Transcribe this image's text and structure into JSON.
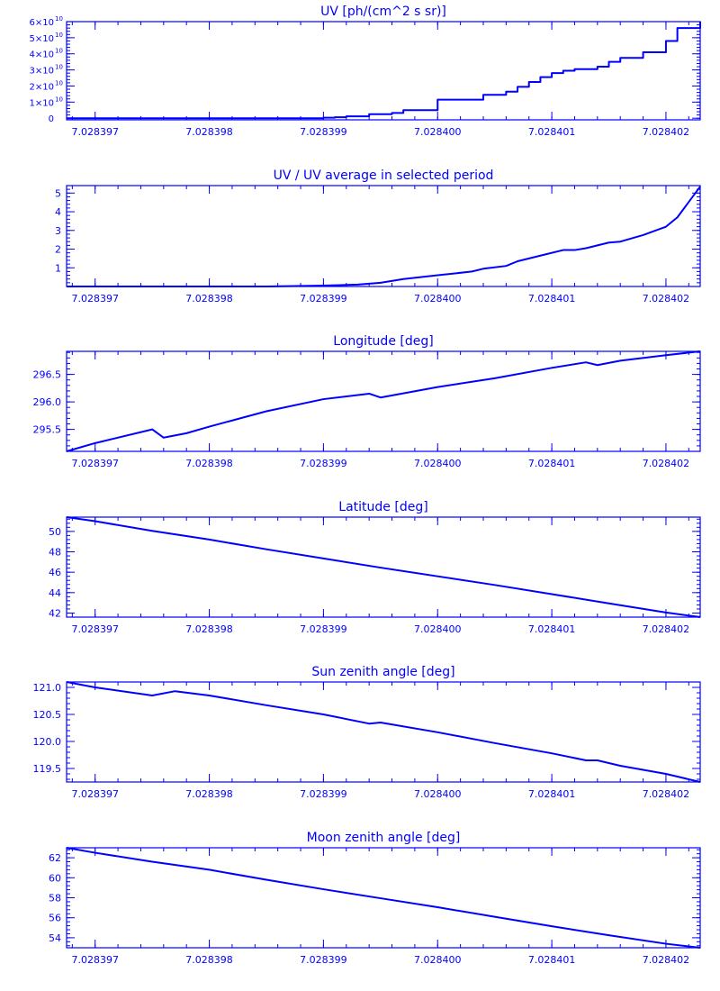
{
  "colors": {
    "axis": "#0000ff",
    "line": "#0000ff",
    "background": "#ffffff"
  },
  "chart_data": [
    {
      "type": "line",
      "id": "uv",
      "title": "UV [ph/(cm^2 s sr)]",
      "xlabel": "",
      "ylabel": "",
      "step": true,
      "xlim": [
        7.02839675,
        7.0284023
      ],
      "ylim": [
        -1000000000,
        60000000000
      ],
      "xticks": [
        "7.028397",
        "7.028398",
        "7.028399",
        "7.028400",
        "7.028401",
        "7.028402"
      ],
      "xtick_values": [
        7.028397,
        7.028398,
        7.028399,
        7.0284,
        7.028401,
        7.028402
      ],
      "yticks": [
        {
          "value": 0,
          "mant": "0",
          "exp": ""
        },
        {
          "value": 10000000000,
          "mant": "1×10",
          "exp": "10"
        },
        {
          "value": 20000000000,
          "mant": "2×10",
          "exp": "10"
        },
        {
          "value": 30000000000,
          "mant": "3×10",
          "exp": "10"
        },
        {
          "value": 40000000000,
          "mant": "4×10",
          "exp": "10"
        },
        {
          "value": 50000000000,
          "mant": "5×10",
          "exp": "10"
        },
        {
          "value": 60000000000,
          "mant": "6×10",
          "exp": "10"
        }
      ],
      "x": [
        7.02839675,
        7.0283985,
        7.0283988,
        7.028399,
        7.0283991,
        7.0283992,
        7.0283994,
        7.0283996,
        7.0283997,
        7.0284,
        7.0284003,
        7.0284004,
        7.0284006,
        7.0284007,
        7.0284008,
        7.0284009,
        7.028401,
        7.0284011,
        7.0284012,
        7.0284014,
        7.0284015,
        7.0284016,
        7.0284018,
        7.028402,
        7.0284021,
        7.0284023
      ],
      "values": [
        0,
        0,
        0,
        300000000,
        600000000,
        1200000000,
        2500000000,
        3300000000,
        5000000000,
        11500000000,
        11500000000,
        14500000000,
        16500000000,
        19500000000,
        22500000000,
        25500000000,
        28000000000,
        29500000000,
        30500000000,
        32000000000,
        35000000000,
        37500000000,
        41000000000,
        48000000000,
        56000000000,
        60000000000
      ]
    },
    {
      "type": "line",
      "id": "uv-ratio",
      "title": "UV / UV average in selected period",
      "xlabel": "",
      "ylabel": "",
      "xlim": [
        7.02839675,
        7.0284023
      ],
      "ylim": [
        0,
        5.4
      ],
      "xticks": [
        "7.028397",
        "7.028398",
        "7.028399",
        "7.028400",
        "7.028401",
        "7.028402"
      ],
      "xtick_values": [
        7.028397,
        7.028398,
        7.028399,
        7.0284,
        7.028401,
        7.028402
      ],
      "yticks": [
        {
          "value": 1,
          "label": "1"
        },
        {
          "value": 2,
          "label": "2"
        },
        {
          "value": 3,
          "label": "3"
        },
        {
          "value": 4,
          "label": "4"
        },
        {
          "value": 5,
          "label": "5"
        }
      ],
      "x": [
        7.02839675,
        7.0283985,
        7.028399,
        7.0283993,
        7.0283995,
        7.0283997,
        7.0284,
        7.0284003,
        7.0284004,
        7.0284006,
        7.0284007,
        7.0284009,
        7.0284011,
        7.0284012,
        7.0284013,
        7.0284015,
        7.0284016,
        7.0284018,
        7.028402,
        7.0284021,
        7.0284023
      ],
      "values": [
        0,
        0,
        0.05,
        0.1,
        0.2,
        0.4,
        0.6,
        0.8,
        0.95,
        1.1,
        1.35,
        1.65,
        1.95,
        1.95,
        2.05,
        2.35,
        2.4,
        2.75,
        3.2,
        3.7,
        5.35
      ]
    },
    {
      "type": "line",
      "id": "longitude",
      "title": "Longitude [deg]",
      "xlabel": "",
      "ylabel": "",
      "xlim": [
        7.02839675,
        7.0284023
      ],
      "ylim": [
        295.1,
        296.92
      ],
      "xticks": [
        "7.028397",
        "7.028398",
        "7.028399",
        "7.028400",
        "7.028401",
        "7.028402"
      ],
      "xtick_values": [
        7.028397,
        7.028398,
        7.028399,
        7.0284,
        7.028401,
        7.028402
      ],
      "yticks": [
        {
          "value": 295.5,
          "label": "295.5"
        },
        {
          "value": 296.0,
          "label": "296.0"
        },
        {
          "value": 296.5,
          "label": "296.5"
        }
      ],
      "x": [
        7.02839675,
        7.028397,
        7.0283975,
        7.0283976,
        7.0283978,
        7.028398,
        7.0283985,
        7.028399,
        7.0283994,
        7.0283995,
        7.0284,
        7.0284005,
        7.028401,
        7.0284013,
        7.0284014,
        7.0284016,
        7.028402,
        7.0284023
      ],
      "values": [
        295.1,
        295.25,
        295.5,
        295.35,
        295.43,
        295.55,
        295.83,
        296.05,
        296.15,
        296.08,
        296.27,
        296.43,
        296.62,
        296.72,
        296.67,
        296.75,
        296.85,
        296.92
      ]
    },
    {
      "type": "line",
      "id": "latitude",
      "title": "Latitude [deg]",
      "xlabel": "",
      "ylabel": "",
      "xlim": [
        7.02839675,
        7.0284023
      ],
      "ylim": [
        41.6,
        51.4
      ],
      "xticks": [
        "7.028397",
        "7.028398",
        "7.028399",
        "7.028400",
        "7.028401",
        "7.028402"
      ],
      "xtick_values": [
        7.028397,
        7.028398,
        7.028399,
        7.0284,
        7.028401,
        7.028402
      ],
      "yticks": [
        {
          "value": 42,
          "label": "42"
        },
        {
          "value": 44,
          "label": "44"
        },
        {
          "value": 46,
          "label": "46"
        },
        {
          "value": 48,
          "label": "48"
        },
        {
          "value": 50,
          "label": "50"
        }
      ],
      "x": [
        7.02839675,
        7.028397,
        7.0283975,
        7.028398,
        7.0283985,
        7.028399,
        7.0283995,
        7.0284,
        7.0284005,
        7.028401,
        7.0284015,
        7.028402,
        7.0284023
      ],
      "values": [
        51.4,
        51.0,
        50.05,
        49.2,
        48.25,
        47.35,
        46.45,
        45.6,
        44.75,
        43.85,
        42.95,
        42.05,
        41.6
      ]
    },
    {
      "type": "line",
      "id": "sun-zenith",
      "title": "Sun zenith angle [deg]",
      "xlabel": "",
      "ylabel": "",
      "xlim": [
        7.02839675,
        7.0284023
      ],
      "ylim": [
        119.25,
        121.1
      ],
      "xticks": [
        "7.028397",
        "7.028398",
        "7.028399",
        "7.028400",
        "7.028401",
        "7.028402"
      ],
      "xtick_values": [
        7.028397,
        7.028398,
        7.028399,
        7.0284,
        7.028401,
        7.028402
      ],
      "yticks": [
        {
          "value": 119.5,
          "label": "119.5"
        },
        {
          "value": 120.0,
          "label": "120.0"
        },
        {
          "value": 120.5,
          "label": "120.5"
        },
        {
          "value": 121.0,
          "label": "121.0"
        }
      ],
      "x": [
        7.02839675,
        7.028397,
        7.0283975,
        7.0283977,
        7.028398,
        7.0283985,
        7.028399,
        7.0283994,
        7.0283995,
        7.0284,
        7.0284005,
        7.028401,
        7.0284013,
        7.0284014,
        7.0284016,
        7.028402,
        7.0284023
      ],
      "values": [
        121.1,
        121.0,
        120.85,
        120.93,
        120.85,
        120.67,
        120.5,
        120.33,
        120.35,
        120.17,
        119.97,
        119.78,
        119.65,
        119.65,
        119.55,
        119.4,
        119.25
      ]
    },
    {
      "type": "line",
      "id": "moon-zenith",
      "title": "Moon zenith angle [deg]",
      "xlabel": "",
      "ylabel": "",
      "xlim": [
        7.02839675,
        7.0284023
      ],
      "ylim": [
        53.0,
        63.0
      ],
      "xticks": [
        "7.028397",
        "7.028398",
        "7.028399",
        "7.028400",
        "7.028401",
        "7.028402"
      ],
      "xtick_values": [
        7.028397,
        7.028398,
        7.028399,
        7.0284,
        7.028401,
        7.028402
      ],
      "yticks": [
        {
          "value": 54,
          "label": "54"
        },
        {
          "value": 56,
          "label": "56"
        },
        {
          "value": 58,
          "label": "58"
        },
        {
          "value": 60,
          "label": "60"
        },
        {
          "value": 62,
          "label": "62"
        }
      ],
      "x": [
        7.02839675,
        7.028397,
        7.0283975,
        7.028398,
        7.0283985,
        7.028399,
        7.0283995,
        7.0284,
        7.0284005,
        7.028401,
        7.0284015,
        7.028402,
        7.0284023
      ],
      "values": [
        63.0,
        62.5,
        61.6,
        60.8,
        59.8,
        58.85,
        57.95,
        57.05,
        56.1,
        55.15,
        54.25,
        53.4,
        53.0
      ]
    }
  ]
}
